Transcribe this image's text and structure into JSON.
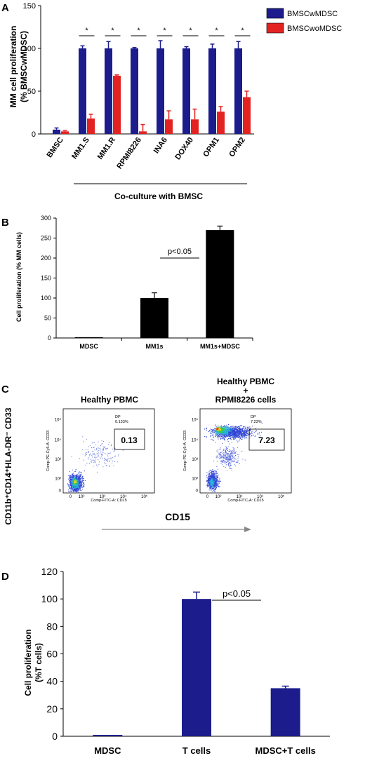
{
  "panels": {
    "A": "A",
    "B": "B",
    "C": "C",
    "D": "D"
  },
  "chart_data": [
    {
      "id": "A",
      "type": "bar",
      "ylabel_line1": "MM cell proliferation",
      "ylabel_line2": "(% BMSCwMDSC)",
      "ylim": [
        0,
        150
      ],
      "yticks": [
        0,
        50,
        100,
        150
      ],
      "categories": [
        "BMSC",
        "MM1.S",
        "MM1.R",
        "RPMI8226",
        "INA6",
        "DOX40",
        "OPM1",
        "OPM2"
      ],
      "series": [
        {
          "name": "BMSCwMDSC",
          "color": "#1c1c8c",
          "values": [
            5,
            100,
            100,
            100,
            100,
            100,
            100,
            100
          ],
          "errors": [
            2,
            3,
            8,
            1,
            9,
            2,
            5,
            8
          ]
        },
        {
          "name": "BMSCwoMDSC",
          "color": "#e32222",
          "values": [
            3,
            18,
            68,
            3,
            17,
            17,
            26,
            43
          ],
          "errors": [
            1,
            5,
            1,
            8,
            10,
            12,
            6,
            7
          ]
        }
      ],
      "significance": [
        "",
        "*",
        "*",
        "*",
        "*",
        "*",
        "*",
        "*"
      ],
      "group_label": "Co-culture with BMSC"
    },
    {
      "id": "B",
      "type": "bar",
      "ylabel": "Cell proliferation (% MM cells)",
      "ylim": [
        0,
        300
      ],
      "yticks": [
        0,
        50,
        100,
        150,
        200,
        250,
        300
      ],
      "categories": [
        "MDSC",
        "MM1s",
        "MM1s+MDSC"
      ],
      "values": [
        2,
        100,
        270
      ],
      "errors": [
        0,
        13,
        10
      ],
      "color": "#000000",
      "annotation": "p<0.05"
    },
    {
      "id": "C",
      "type": "scatter",
      "ylabel": "CD11b⁺CD14⁺HLA-DR⁻ CD33",
      "xlabel": "CD15",
      "plots": [
        {
          "title": "Healthy PBMC",
          "gate_value": "0.13",
          "dp_label": "DP",
          "dp_value": "0.133%",
          "x_axis_label": "Comp-FITC-A: CD15",
          "y_axis_label": "Comp-PE-Cy5-A: CD33"
        },
        {
          "title_line1": "Healthy PBMC",
          "title_line2": "+",
          "title_line3": "RPMI8226 cells",
          "gate_value": "7.23",
          "dp_label": "DP",
          "dp_value": "7.23%",
          "x_axis_label": "Comp-FITC-A: CD15",
          "y_axis_label": "Comp-PE-Cy5-A: CD33"
        }
      ],
      "tick_labels": [
        "0",
        "10²",
        "10³",
        "10⁴",
        "10⁵"
      ]
    },
    {
      "id": "D",
      "type": "bar",
      "ylabel_line1": "Cell proliferation",
      "ylabel_line2": "(%T cells)",
      "ylim": [
        0,
        120
      ],
      "yticks": [
        0,
        20,
        40,
        60,
        80,
        100,
        120
      ],
      "categories": [
        "MDSC",
        "T cells",
        "MDSC+T cells"
      ],
      "values": [
        1,
        100,
        35
      ],
      "errors": [
        0,
        5,
        1.5
      ],
      "color": "#1c1c8c",
      "annotation": "p<0.05"
    }
  ]
}
